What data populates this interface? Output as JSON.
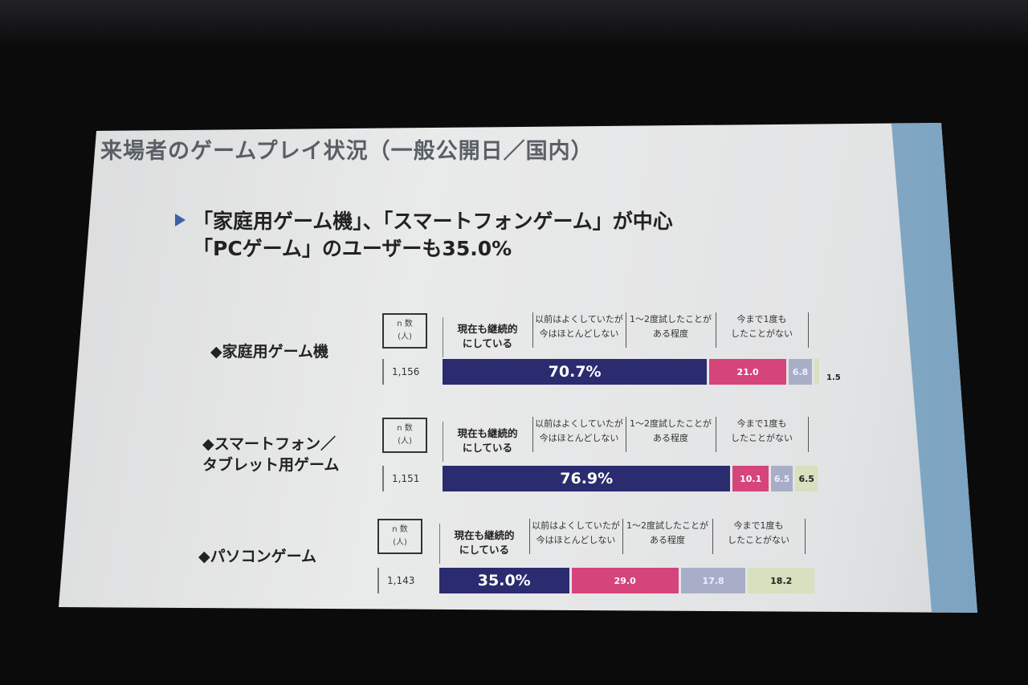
{
  "slide": {
    "title": "来場者のゲームプレイ状況（一般公開日／国内）",
    "bullet_line1": "「家庭用ゲーム機」、「スマートフォンゲーム」が中心",
    "bullet_line2": "「PCゲーム」のユーザーも35.0%"
  },
  "chart_data": {
    "type": "bar",
    "orientation": "horizontal",
    "stacked": true,
    "unit": "%",
    "n_header_line1": "n 数",
    "n_header_line2": "(人)",
    "legend": [
      "現在も継続的にしている",
      "以前はよくしていたが今はほとんどしない",
      "1～2度試したことがある程度",
      "今まで1度もしたことがない"
    ],
    "legend_lines": [
      [
        "現在も継続的",
        "にしている"
      ],
      [
        "以前はよくしていたが",
        "今はほとんどしない"
      ],
      [
        "1～2度試したことが",
        "ある程度"
      ],
      [
        "今まで1度も",
        "したことがない"
      ]
    ],
    "colors": [
      "#2b2b70",
      "#d6447c",
      "#a9aec8",
      "#d7e0bf"
    ],
    "rows": [
      {
        "label_lines": [
          "◆家庭用ゲーム機"
        ],
        "n": "1,156",
        "values": [
          70.7,
          21.0,
          6.8,
          1.5
        ],
        "labels": [
          "70.7%",
          "21.0",
          "6.8",
          "1.5"
        ]
      },
      {
        "label_lines": [
          "◆スマートフォン／",
          "タブレット用ゲーム"
        ],
        "n": "1,151",
        "values": [
          76.9,
          10.1,
          6.5,
          6.5
        ],
        "labels": [
          "76.9%",
          "10.1",
          "6.5",
          "6.5"
        ]
      },
      {
        "label_lines": [
          "◆パソコンゲーム"
        ],
        "n": "1,143",
        "values": [
          35.0,
          29.0,
          17.8,
          18.2
        ],
        "labels": [
          "35.0%",
          "29.0",
          "17.8",
          "18.2"
        ]
      }
    ]
  }
}
